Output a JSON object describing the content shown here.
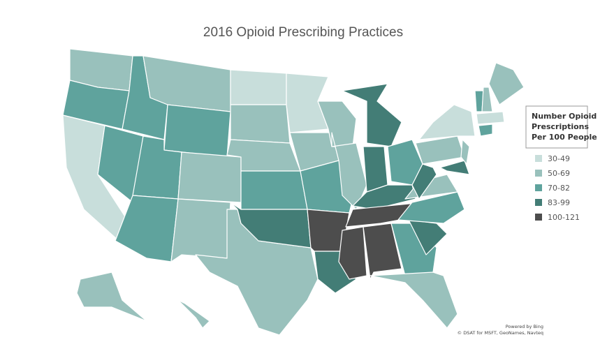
{
  "title": "2016 Opioid Prescribing Practices",
  "legend": {
    "title": [
      "Number Opioid",
      "Prescriptions",
      "Per 100 People"
    ],
    "items": [
      {
        "label": "30-49",
        "color": "#c8dedb"
      },
      {
        "label": "50-69",
        "color": "#99c1bc"
      },
      {
        "label": "70-82",
        "color": "#5fa39d"
      },
      {
        "label": "83-99",
        "color": "#437d76"
      },
      {
        "label": "100-121",
        "color": "#4d4d4d"
      }
    ]
  },
  "attribution": [
    "Powered by Bing",
    "© DSAT for MSFT, GeoNames, Navteq"
  ]
}
